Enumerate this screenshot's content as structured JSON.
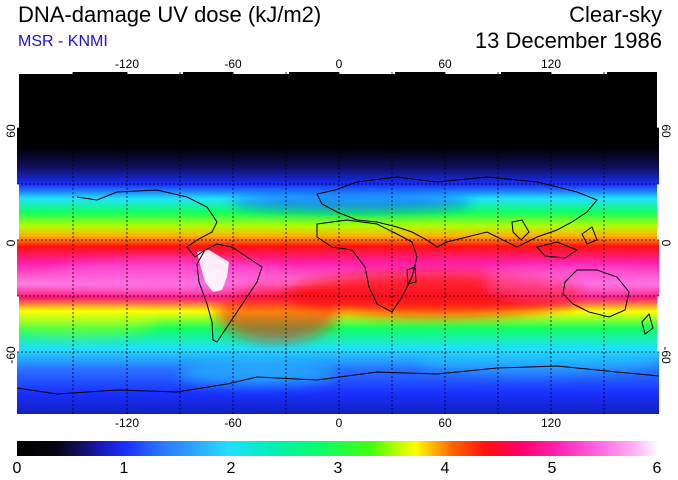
{
  "header": {
    "title": "DNA-damage UV dose (kJ/m2)",
    "subtitle": "MSR - KNMI",
    "condition": "Clear-sky",
    "date": "13 December 1986"
  },
  "map": {
    "lon_ticks": [
      "-120",
      "-60",
      "0",
      "60",
      "120"
    ],
    "lat_left": [
      "60",
      "0",
      "-60"
    ],
    "lat_right": [
      "60",
      "0",
      "-60"
    ],
    "colors": {
      "black": "#000000",
      "navy": "#101060",
      "blue": "#1a30ff",
      "cyan": "#20e0ff",
      "green": "#10ff60",
      "yellow": "#ffff00",
      "red": "#ff1010",
      "magenta": "#ff20b0",
      "pink": "#ff80e6",
      "white": "#ffffff"
    }
  },
  "colorbar": {
    "min": 0,
    "max": 6,
    "labels": [
      "0",
      "1",
      "2",
      "3",
      "4",
      "5",
      "6"
    ]
  }
}
